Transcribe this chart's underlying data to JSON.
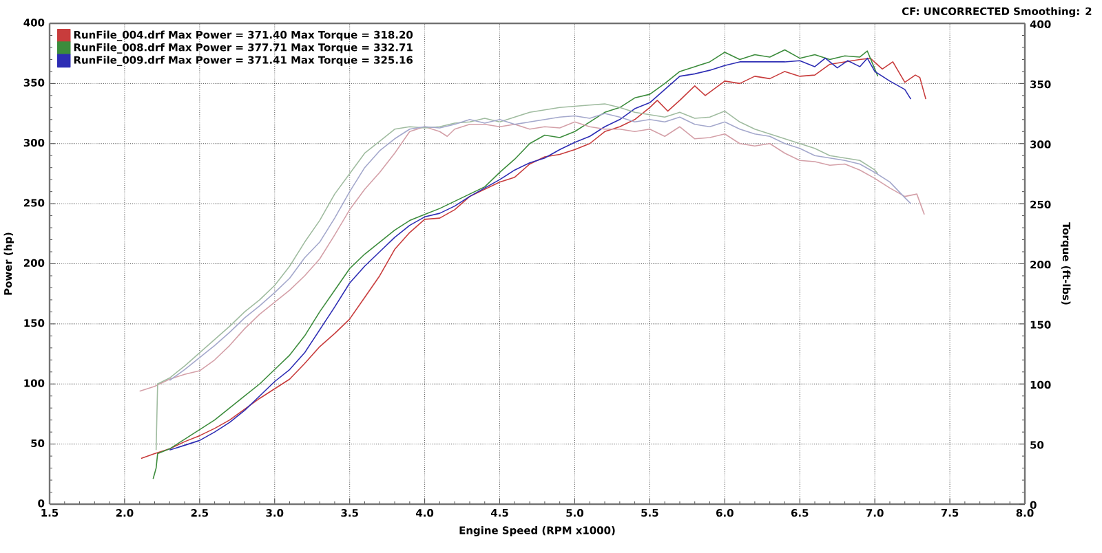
{
  "chart_data": {
    "type": "line",
    "xlabel": "Engine Speed (RPM x1000)",
    "ylabel": "Power (hp)",
    "y2label": "Torque (ft-lbs)",
    "annotations": [
      "CF: UNCORRECTED Smoothing: 2"
    ],
    "xlim": [
      1.5,
      8.0
    ],
    "xticks": [
      1.5,
      {
        "value": 2,
        "label": "2.0"
      },
      2.5,
      {
        "value": 3,
        "label": "3.0"
      },
      3.5,
      {
        "value": 4,
        "label": "4.0"
      },
      4.5,
      {
        "value": 5,
        "label": "5.0"
      },
      5.5,
      {
        "value": 6,
        "label": "6.0"
      },
      6.5,
      {
        "value": 7,
        "label": "7.0"
      },
      7.5,
      {
        "value": 8,
        "label": "8.0"
      }
    ],
    "ylim": [
      0,
      400
    ],
    "yticks": [
      0,
      50,
      100,
      150,
      200,
      250,
      300,
      350,
      400
    ],
    "y2lim": [
      0,
      400
    ],
    "y2ticks": [
      0,
      50,
      100,
      150,
      200,
      250,
      300,
      350,
      400
    ],
    "grid": true,
    "legend": "top left",
    "line_style": "solid",
    "series": [
      {
        "name": "RunFile_004.drf Max Power = 371.40 Max Torque = 318.20",
        "color": "#c83c3c",
        "x": [
          2.11,
          2.2,
          2.3,
          2.4,
          2.5,
          2.6,
          2.7,
          2.8,
          2.9,
          3.0,
          3.1,
          3.2,
          3.3,
          3.4,
          3.5,
          3.6,
          3.7,
          3.8,
          3.9,
          4.0,
          4.1,
          4.2,
          4.3,
          4.4,
          4.5,
          4.6,
          4.7,
          4.8,
          4.9,
          5.0,
          5.1,
          5.2,
          5.3,
          5.4,
          5.5,
          5.55,
          5.62,
          5.7,
          5.8,
          5.87,
          6.0,
          6.1,
          6.2,
          6.3,
          6.4,
          6.5,
          6.6,
          6.7,
          6.8,
          6.9,
          6.97,
          7.05,
          7.12,
          7.2,
          7.27,
          7.3,
          7.34
        ],
        "values": [
          38,
          42,
          46,
          52,
          57,
          63,
          70,
          79,
          88,
          96,
          104,
          117,
          131,
          142,
          154,
          172,
          190,
          212,
          226,
          237,
          238,
          245,
          256,
          262,
          268,
          272,
          283,
          289,
          291,
          295,
          300,
          310,
          314,
          320,
          330,
          336,
          327,
          336,
          348,
          340,
          352,
          350,
          356,
          354,
          360,
          356,
          357,
          366,
          368,
          370,
          371,
          362,
          368,
          351,
          357,
          355,
          337
        ]
      },
      {
        "name": "RunFile_008.drf Max Power = 377.71 Max Torque = 332.71",
        "color": "#3c8c3c",
        "x": [
          2.19,
          2.21,
          2.22,
          2.3,
          2.4,
          2.5,
          2.6,
          2.7,
          2.8,
          2.9,
          3.0,
          3.1,
          3.2,
          3.3,
          3.4,
          3.5,
          3.6,
          3.7,
          3.8,
          3.9,
          4.0,
          4.1,
          4.2,
          4.3,
          4.4,
          4.5,
          4.6,
          4.7,
          4.8,
          4.9,
          5.0,
          5.1,
          5.2,
          5.3,
          5.4,
          5.5,
          5.6,
          5.7,
          5.8,
          5.9,
          6.0,
          6.1,
          6.2,
          6.3,
          6.4,
          6.5,
          6.6,
          6.7,
          6.8,
          6.9,
          6.95,
          7.0,
          7.02
        ],
        "values": [
          21,
          30,
          42,
          46,
          54,
          62,
          70,
          80,
          90,
          100,
          112,
          124,
          140,
          160,
          178,
          196,
          208,
          218,
          228,
          236,
          241,
          246,
          252,
          258,
          264,
          276,
          287,
          300,
          307,
          305,
          310,
          318,
          326,
          330,
          338,
          341,
          350,
          360,
          364,
          368,
          376,
          370,
          374,
          372,
          378,
          371,
          374,
          370,
          373,
          372,
          377,
          362,
          356
        ]
      },
      {
        "name": "RunFile_009.drf Max Power = 371.41 Max Torque = 325.16",
        "color": "#2d2db4",
        "x": [
          2.3,
          2.4,
          2.5,
          2.6,
          2.7,
          2.8,
          2.9,
          3.0,
          3.1,
          3.2,
          3.3,
          3.4,
          3.5,
          3.6,
          3.7,
          3.8,
          3.9,
          4.0,
          4.1,
          4.2,
          4.3,
          4.4,
          4.5,
          4.6,
          4.7,
          4.8,
          4.9,
          5.0,
          5.1,
          5.2,
          5.3,
          5.4,
          5.5,
          5.6,
          5.7,
          5.8,
          5.9,
          6.0,
          6.1,
          6.2,
          6.3,
          6.4,
          6.5,
          6.6,
          6.67,
          6.75,
          6.82,
          6.9,
          6.95,
          7.0,
          7.1,
          7.2,
          7.24
        ],
        "values": [
          45,
          49,
          53,
          60,
          68,
          78,
          90,
          102,
          112,
          126,
          145,
          164,
          184,
          198,
          210,
          222,
          232,
          239,
          242,
          248,
          256,
          263,
          270,
          278,
          284,
          288,
          295,
          301,
          306,
          314,
          320,
          329,
          334,
          345,
          356,
          358,
          361,
          365,
          368,
          368,
          368,
          368,
          369,
          364,
          371,
          363,
          369,
          364,
          371,
          360,
          352,
          345,
          337
        ]
      },
      {
        "color": "#d4a0a8",
        "axis": "y2",
        "x": [
          2.1,
          2.2,
          2.3,
          2.4,
          2.5,
          2.6,
          2.7,
          2.8,
          2.9,
          3.0,
          3.1,
          3.2,
          3.3,
          3.4,
          3.5,
          3.6,
          3.7,
          3.8,
          3.9,
          4.0,
          4.1,
          4.15,
          4.2,
          4.3,
          4.4,
          4.5,
          4.6,
          4.7,
          4.8,
          4.9,
          5.0,
          5.1,
          5.2,
          5.3,
          5.4,
          5.5,
          5.6,
          5.7,
          5.8,
          5.9,
          6.0,
          6.1,
          6.2,
          6.3,
          6.4,
          6.5,
          6.6,
          6.7,
          6.8,
          6.9,
          7.0,
          7.1,
          7.2,
          7.28,
          7.33
        ],
        "values": [
          94,
          98,
          104,
          108,
          111,
          120,
          132,
          146,
          158,
          168,
          178,
          190,
          204,
          224,
          245,
          262,
          276,
          292,
          310,
          314,
          310,
          306,
          312,
          316,
          316,
          314,
          316,
          312,
          314,
          313,
          318,
          314,
          312,
          312,
          310,
          312,
          306,
          314,
          304,
          305,
          308,
          300,
          298,
          300,
          292,
          286,
          285,
          282,
          283,
          278,
          271,
          263,
          256,
          258,
          241
        ]
      },
      {
        "color": "#a0bca0",
        "axis": "y2",
        "x": [
          2.21,
          2.22,
          2.3,
          2.4,
          2.5,
          2.6,
          2.7,
          2.8,
          2.9,
          3.0,
          3.1,
          3.2,
          3.3,
          3.4,
          3.5,
          3.6,
          3.7,
          3.8,
          3.9,
          4.0,
          4.1,
          4.2,
          4.3,
          4.4,
          4.5,
          4.6,
          4.7,
          4.8,
          4.9,
          5.0,
          5.1,
          5.2,
          5.3,
          5.4,
          5.5,
          5.6,
          5.7,
          5.8,
          5.9,
          6.0,
          6.1,
          6.2,
          6.3,
          6.4,
          6.5,
          6.6,
          6.7,
          6.8,
          6.9,
          7.0,
          7.02
        ],
        "values": [
          45,
          100,
          105,
          115,
          126,
          137,
          148,
          160,
          170,
          182,
          198,
          218,
          236,
          258,
          275,
          292,
          302,
          312,
          314,
          313,
          314,
          317,
          318,
          321,
          318,
          322,
          326,
          328,
          330,
          331,
          332,
          333,
          330,
          326,
          324,
          322,
          326,
          321,
          322,
          327,
          318,
          312,
          308,
          304,
          300,
          296,
          290,
          288,
          286,
          278,
          275
        ]
      },
      {
        "color": "#a4a8cc",
        "axis": "y2",
        "x": [
          2.3,
          2.4,
          2.5,
          2.6,
          2.7,
          2.8,
          2.9,
          3.0,
          3.1,
          3.2,
          3.3,
          3.4,
          3.5,
          3.6,
          3.7,
          3.8,
          3.9,
          4.0,
          4.1,
          4.2,
          4.3,
          4.4,
          4.5,
          4.6,
          4.7,
          4.8,
          4.9,
          5.0,
          5.1,
          5.2,
          5.3,
          5.4,
          5.5,
          5.6,
          5.7,
          5.8,
          5.9,
          6.0,
          6.1,
          6.2,
          6.3,
          6.4,
          6.5,
          6.6,
          6.7,
          6.8,
          6.9,
          7.0,
          7.1,
          7.2,
          7.24
        ],
        "values": [
          103,
          112,
          122,
          132,
          143,
          155,
          165,
          176,
          188,
          205,
          218,
          238,
          260,
          280,
          294,
          304,
          312,
          314,
          313,
          316,
          320,
          317,
          320,
          316,
          318,
          320,
          322,
          323,
          321,
          325,
          322,
          318,
          320,
          318,
          322,
          316,
          314,
          318,
          312,
          308,
          306,
          300,
          296,
          290,
          288,
          286,
          283,
          276,
          268,
          255,
          250
        ]
      }
    ]
  }
}
